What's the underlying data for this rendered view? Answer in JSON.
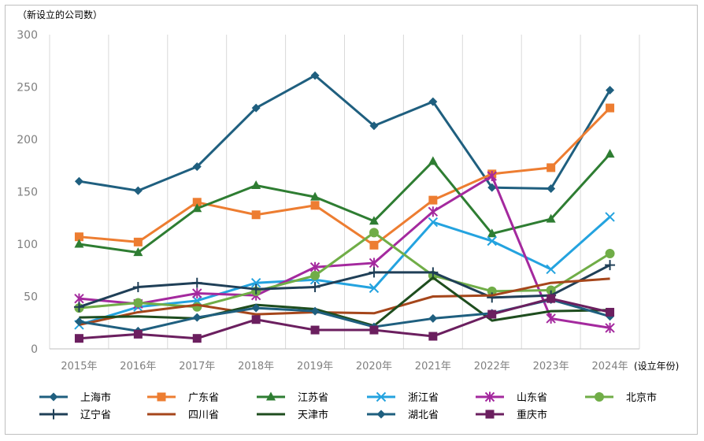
{
  "chart_data": {
    "type": "line",
    "ylabel": "（新设立的公司数）",
    "xlabel": "(设立年份)",
    "ylim": [
      0,
      300
    ],
    "yticks": [
      0,
      50,
      100,
      150,
      200,
      250,
      300
    ],
    "categories": [
      "2015年",
      "2016年",
      "2017年",
      "2018年",
      "2019年",
      "2020年",
      "2021年",
      "2022年",
      "2023年",
      "2024年"
    ],
    "grid": "vertical",
    "legend_position": "bottom",
    "series": [
      {
        "name": "上海市",
        "color": "#1f5f7f",
        "marker": "diamond",
        "values": [
          160,
          151,
          174,
          230,
          261,
          213,
          236,
          154,
          153,
          247
        ]
      },
      {
        "name": "广东省",
        "color": "#ed7d31",
        "marker": "square",
        "values": [
          107,
          102,
          140,
          128,
          137,
          99,
          142,
          167,
          173,
          230
        ]
      },
      {
        "name": "江苏省",
        "color": "#2e7d32",
        "marker": "triangle",
        "values": [
          100,
          92,
          134,
          156,
          145,
          122,
          179,
          110,
          124,
          186
        ]
      },
      {
        "name": "浙江省",
        "color": "#24a3df",
        "marker": "x",
        "values": [
          23,
          40,
          46,
          63,
          66,
          58,
          121,
          103,
          76,
          126
        ]
      },
      {
        "name": "山东省",
        "color": "#a4299e",
        "marker": "star",
        "values": [
          48,
          43,
          53,
          51,
          78,
          82,
          131,
          165,
          29,
          20
        ]
      },
      {
        "name": "北京市",
        "color": "#70ad47",
        "marker": "circle",
        "values": [
          39,
          44,
          40,
          55,
          70,
          111,
          70,
          55,
          56,
          91
        ]
      },
      {
        "name": "辽宁省",
        "color": "#1f3f57",
        "marker": "plus",
        "values": [
          40,
          59,
          63,
          57,
          59,
          73,
          73,
          49,
          51,
          80
        ]
      },
      {
        "name": "四川省",
        "color": "#a5461b",
        "marker": "none",
        "values": [
          23,
          35,
          42,
          33,
          35,
          34,
          50,
          51,
          63,
          67
        ]
      },
      {
        "name": "天津市",
        "color": "#1e4d1e",
        "marker": "none",
        "values": [
          30,
          31,
          29,
          42,
          38,
          22,
          68,
          27,
          36,
          37
        ]
      },
      {
        "name": "湖北省",
        "color": "#1f5f7f",
        "marker": "diamond",
        "values": [
          26,
          17,
          30,
          39,
          36,
          21,
          29,
          34,
          47,
          31
        ]
      },
      {
        "name": "重庆市",
        "color": "#6b1f5f",
        "marker": "square",
        "values": [
          10,
          14,
          10,
          28,
          18,
          18,
          12,
          33,
          48,
          35
        ]
      }
    ]
  }
}
